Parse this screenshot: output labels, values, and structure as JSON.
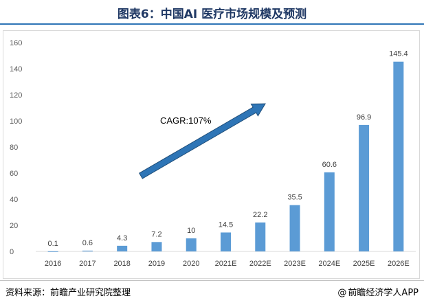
{
  "header": {
    "title": "图表6：中国AI 医疗市场规模及预测"
  },
  "chart_data": {
    "type": "bar",
    "categories": [
      "2016",
      "2017",
      "2018",
      "2019",
      "2020",
      "2021E",
      "2022E",
      "2023E",
      "2024E",
      "2025E",
      "2026E"
    ],
    "values": [
      0.1,
      0.6,
      4.3,
      7.2,
      10,
      14.5,
      22.2,
      35.5,
      60.6,
      96.9,
      145.4
    ],
    "value_labels": [
      "0.1",
      "0.6",
      "4.3",
      "7.2",
      "10",
      "14.5",
      "22.2",
      "35.5",
      "60.6",
      "96.9",
      "145.4"
    ],
    "ylim": [
      0,
      160
    ],
    "yticks": [
      0,
      20,
      40,
      60,
      80,
      100,
      120,
      140,
      160
    ],
    "ytick_labels": [
      "0",
      "20",
      "40",
      "60",
      "80",
      "100",
      "120",
      "140",
      "160"
    ],
    "grid": false,
    "bar_color": "#5b9bd5",
    "annotation": {
      "text": "CAGR:107%",
      "arrow_color": "#2e75b6"
    }
  },
  "footer": {
    "source": "资料来源：前瞻产业研究院整理",
    "brand": "前瞻经济学人APP",
    "brand_icon": "at-sign-icon"
  }
}
